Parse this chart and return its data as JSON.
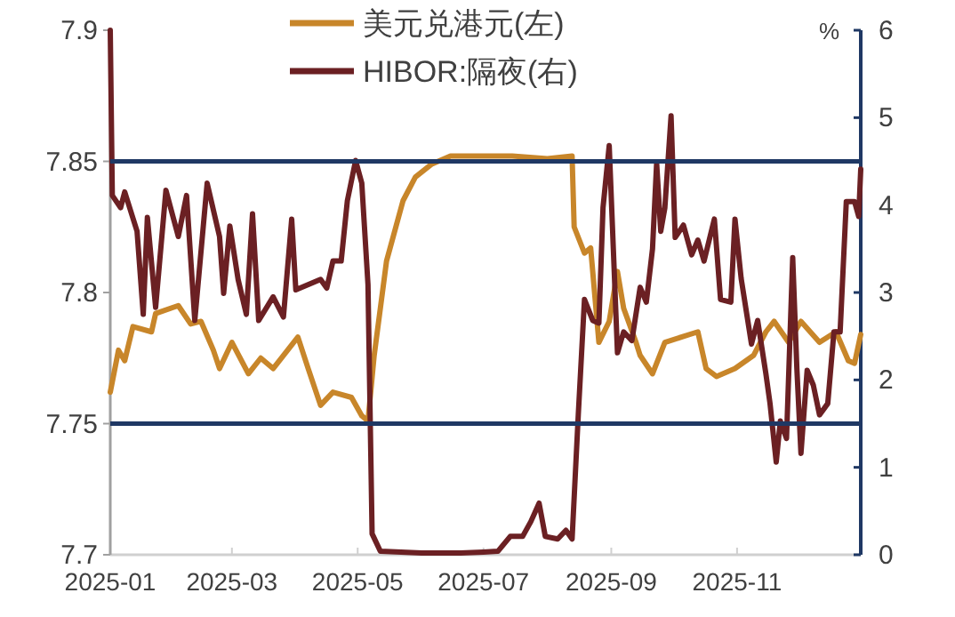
{
  "chart_data": {
    "type": "line",
    "legend": "top",
    "y2label": "%",
    "xlim": [
      "2025-01-01",
      "2025-12-31"
    ],
    "xticks": [
      "2025-01",
      "2025-03",
      "2025-05",
      "2025-07",
      "2025-09",
      "2025-11"
    ],
    "ylim": [
      7.7,
      7.9
    ],
    "yticks": [
      7.7,
      7.75,
      7.8,
      7.85,
      7.9
    ],
    "y2lim": [
      0,
      6
    ],
    "y2ticks": [
      0,
      1,
      2,
      3,
      4,
      5,
      6
    ],
    "ref_lines": [
      {
        "axis": "y",
        "value": 7.85,
        "color": "#1f3864"
      },
      {
        "axis": "y",
        "value": 7.75,
        "color": "#1f3864"
      }
    ],
    "series": [
      {
        "name": "美元兑港元(左)",
        "color": "#c8862a",
        "x": [
          "2025-01-01",
          "2025-01-05",
          "2025-01-08",
          "2025-01-12",
          "2025-01-21",
          "2025-01-23",
          "2025-02-03",
          "2025-02-09",
          "2025-02-14",
          "2025-02-20",
          "2025-02-23",
          "2025-03-01",
          "2025-03-09",
          "2025-03-15",
          "2025-03-21",
          "2025-04-02",
          "2025-04-07",
          "2025-04-13",
          "2025-04-19",
          "2025-04-28",
          "2025-05-03",
          "2025-05-06",
          "2025-05-09",
          "2025-05-15",
          "2025-05-23",
          "2025-05-29",
          "2025-06-06",
          "2025-06-15",
          "2025-07-15",
          "2025-08-01",
          "2025-08-13",
          "2025-08-14",
          "2025-08-19",
          "2025-08-22",
          "2025-08-26",
          "2025-08-31",
          "2025-09-04",
          "2025-09-07",
          "2025-09-13",
          "2025-09-15",
          "2025-09-21",
          "2025-09-27",
          "2025-10-05",
          "2025-10-13",
          "2025-10-17",
          "2025-10-22",
          "2025-10-31",
          "2025-11-09",
          "2025-11-15",
          "2025-11-19",
          "2025-11-26",
          "2025-12-02",
          "2025-12-11",
          "2025-12-19",
          "2025-12-25",
          "2025-12-28",
          "2025-12-31"
        ],
        "values": [
          7.762,
          7.778,
          7.774,
          7.787,
          7.785,
          7.792,
          7.795,
          7.788,
          7.789,
          7.778,
          7.771,
          7.781,
          7.769,
          7.775,
          7.771,
          7.783,
          7.771,
          7.757,
          7.762,
          7.76,
          7.753,
          7.751,
          7.776,
          7.812,
          7.835,
          7.844,
          7.849,
          7.852,
          7.852,
          7.851,
          7.852,
          7.825,
          7.815,
          7.817,
          7.781,
          7.789,
          7.808,
          7.794,
          7.781,
          7.776,
          7.769,
          7.781,
          7.783,
          7.785,
          7.771,
          7.768,
          7.771,
          7.776,
          7.785,
          7.789,
          7.781,
          7.789,
          7.781,
          7.785,
          7.774,
          7.773,
          7.784
        ]
      },
      {
        "name": "HIBOR:隔夜(右)",
        "color": "#6b2023",
        "axis": "y2",
        "x": [
          "2025-01-01",
          "2025-01-02",
          "2025-01-06",
          "2025-01-08",
          "2025-01-14",
          "2025-01-17",
          "2025-01-19",
          "2025-01-23",
          "2025-01-28",
          "2025-02-03",
          "2025-02-07",
          "2025-02-11",
          "2025-02-17",
          "2025-02-23",
          "2025-02-25",
          "2025-02-28",
          "2025-03-04",
          "2025-03-08",
          "2025-03-11",
          "2025-03-14",
          "2025-03-21",
          "2025-03-26",
          "2025-03-30",
          "2025-04-01",
          "2025-04-13",
          "2025-04-16",
          "2025-04-19",
          "2025-04-23",
          "2025-04-26",
          "2025-04-30",
          "2025-05-03",
          "2025-05-06",
          "2025-05-08",
          "2025-05-12",
          "2025-06-01",
          "2025-06-20",
          "2025-07-01",
          "2025-07-08",
          "2025-07-14",
          "2025-07-20",
          "2025-07-24",
          "2025-07-28",
          "2025-07-31",
          "2025-08-06",
          "2025-08-10",
          "2025-08-13",
          "2025-08-16",
          "2025-08-19",
          "2025-08-23",
          "2025-08-26",
          "2025-08-28",
          "2025-08-31",
          "2025-09-02",
          "2025-09-04",
          "2025-09-07",
          "2025-09-11",
          "2025-09-15",
          "2025-09-18",
          "2025-09-21",
          "2025-09-23",
          "2025-09-25",
          "2025-09-27",
          "2025-09-30",
          "2025-10-02",
          "2025-10-06",
          "2025-10-10",
          "2025-10-13",
          "2025-10-16",
          "2025-10-21",
          "2025-10-24",
          "2025-10-29",
          "2025-10-31",
          "2025-11-03",
          "2025-11-08",
          "2025-11-11",
          "2025-11-15",
          "2025-11-17",
          "2025-11-20",
          "2025-11-22",
          "2025-11-25",
          "2025-11-28",
          "2025-11-30",
          "2025-12-02",
          "2025-12-05",
          "2025-12-08",
          "2025-12-11",
          "2025-12-15",
          "2025-12-18",
          "2025-12-21",
          "2025-12-24",
          "2025-12-28",
          "2025-12-30",
          "2025-12-31"
        ],
        "values": [
          6.0,
          4.11,
          3.97,
          4.15,
          3.7,
          2.75,
          3.86,
          2.83,
          4.17,
          3.64,
          4.11,
          2.68,
          4.25,
          3.64,
          2.99,
          3.76,
          3.15,
          2.75,
          3.9,
          2.68,
          2.95,
          2.72,
          3.84,
          3.03,
          3.15,
          3.05,
          3.36,
          3.36,
          4.05,
          4.51,
          4.25,
          3.09,
          0.24,
          0.04,
          0.02,
          0.02,
          0.03,
          0.04,
          0.21,
          0.21,
          0.38,
          0.59,
          0.21,
          0.18,
          0.28,
          0.18,
          1.6,
          2.92,
          2.68,
          2.65,
          3.97,
          4.68,
          3.5,
          2.31,
          2.55,
          2.45,
          3.06,
          2.89,
          3.5,
          4.48,
          3.7,
          3.97,
          5.02,
          3.63,
          3.77,
          3.43,
          3.6,
          3.36,
          3.84,
          2.92,
          2.89,
          3.84,
          3.16,
          2.41,
          2.68,
          2.07,
          1.73,
          1.06,
          1.53,
          1.33,
          3.4,
          2.14,
          1.16,
          2.11,
          1.94,
          1.6,
          1.73,
          2.55,
          2.55,
          4.04,
          4.04,
          3.87,
          4.41
        ]
      }
    ]
  }
}
